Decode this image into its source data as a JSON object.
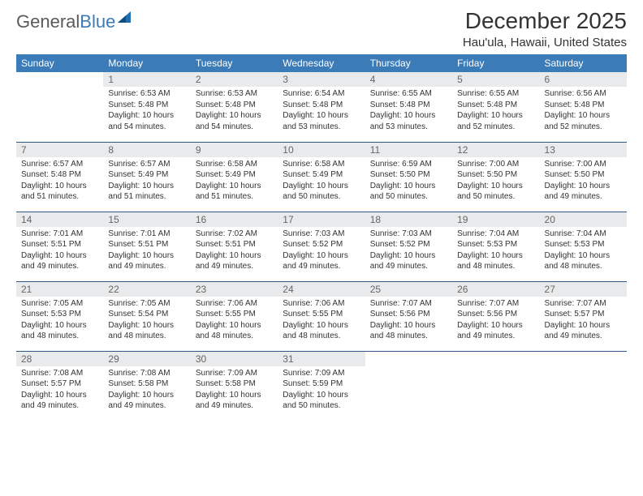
{
  "brand": {
    "name_part1": "General",
    "name_part2": "Blue"
  },
  "colors": {
    "header_bg": "#3b7bb8",
    "header_text": "#ffffff",
    "daynum_bg": "#e9eaeb",
    "daynum_text": "#666666",
    "rule": "#2e5a84",
    "logo_gray": "#5a5a5a",
    "logo_blue": "#3b7bb8"
  },
  "title": "December 2025",
  "location": "Hau'ula, Hawaii, United States",
  "day_headers": [
    "Sunday",
    "Monday",
    "Tuesday",
    "Wednesday",
    "Thursday",
    "Friday",
    "Saturday"
  ],
  "start_offset": 1,
  "days": [
    {
      "n": 1,
      "sr": "6:53 AM",
      "ss": "5:48 PM",
      "dl": "10 hours and 54 minutes."
    },
    {
      "n": 2,
      "sr": "6:53 AM",
      "ss": "5:48 PM",
      "dl": "10 hours and 54 minutes."
    },
    {
      "n": 3,
      "sr": "6:54 AM",
      "ss": "5:48 PM",
      "dl": "10 hours and 53 minutes."
    },
    {
      "n": 4,
      "sr": "6:55 AM",
      "ss": "5:48 PM",
      "dl": "10 hours and 53 minutes."
    },
    {
      "n": 5,
      "sr": "6:55 AM",
      "ss": "5:48 PM",
      "dl": "10 hours and 52 minutes."
    },
    {
      "n": 6,
      "sr": "6:56 AM",
      "ss": "5:48 PM",
      "dl": "10 hours and 52 minutes."
    },
    {
      "n": 7,
      "sr": "6:57 AM",
      "ss": "5:48 PM",
      "dl": "10 hours and 51 minutes."
    },
    {
      "n": 8,
      "sr": "6:57 AM",
      "ss": "5:49 PM",
      "dl": "10 hours and 51 minutes."
    },
    {
      "n": 9,
      "sr": "6:58 AM",
      "ss": "5:49 PM",
      "dl": "10 hours and 51 minutes."
    },
    {
      "n": 10,
      "sr": "6:58 AM",
      "ss": "5:49 PM",
      "dl": "10 hours and 50 minutes."
    },
    {
      "n": 11,
      "sr": "6:59 AM",
      "ss": "5:50 PM",
      "dl": "10 hours and 50 minutes."
    },
    {
      "n": 12,
      "sr": "7:00 AM",
      "ss": "5:50 PM",
      "dl": "10 hours and 50 minutes."
    },
    {
      "n": 13,
      "sr": "7:00 AM",
      "ss": "5:50 PM",
      "dl": "10 hours and 49 minutes."
    },
    {
      "n": 14,
      "sr": "7:01 AM",
      "ss": "5:51 PM",
      "dl": "10 hours and 49 minutes."
    },
    {
      "n": 15,
      "sr": "7:01 AM",
      "ss": "5:51 PM",
      "dl": "10 hours and 49 minutes."
    },
    {
      "n": 16,
      "sr": "7:02 AM",
      "ss": "5:51 PM",
      "dl": "10 hours and 49 minutes."
    },
    {
      "n": 17,
      "sr": "7:03 AM",
      "ss": "5:52 PM",
      "dl": "10 hours and 49 minutes."
    },
    {
      "n": 18,
      "sr": "7:03 AM",
      "ss": "5:52 PM",
      "dl": "10 hours and 49 minutes."
    },
    {
      "n": 19,
      "sr": "7:04 AM",
      "ss": "5:53 PM",
      "dl": "10 hours and 48 minutes."
    },
    {
      "n": 20,
      "sr": "7:04 AM",
      "ss": "5:53 PM",
      "dl": "10 hours and 48 minutes."
    },
    {
      "n": 21,
      "sr": "7:05 AM",
      "ss": "5:53 PM",
      "dl": "10 hours and 48 minutes."
    },
    {
      "n": 22,
      "sr": "7:05 AM",
      "ss": "5:54 PM",
      "dl": "10 hours and 48 minutes."
    },
    {
      "n": 23,
      "sr": "7:06 AM",
      "ss": "5:55 PM",
      "dl": "10 hours and 48 minutes."
    },
    {
      "n": 24,
      "sr": "7:06 AM",
      "ss": "5:55 PM",
      "dl": "10 hours and 48 minutes."
    },
    {
      "n": 25,
      "sr": "7:07 AM",
      "ss": "5:56 PM",
      "dl": "10 hours and 48 minutes."
    },
    {
      "n": 26,
      "sr": "7:07 AM",
      "ss": "5:56 PM",
      "dl": "10 hours and 49 minutes."
    },
    {
      "n": 27,
      "sr": "7:07 AM",
      "ss": "5:57 PM",
      "dl": "10 hours and 49 minutes."
    },
    {
      "n": 28,
      "sr": "7:08 AM",
      "ss": "5:57 PM",
      "dl": "10 hours and 49 minutes."
    },
    {
      "n": 29,
      "sr": "7:08 AM",
      "ss": "5:58 PM",
      "dl": "10 hours and 49 minutes."
    },
    {
      "n": 30,
      "sr": "7:09 AM",
      "ss": "5:58 PM",
      "dl": "10 hours and 49 minutes."
    },
    {
      "n": 31,
      "sr": "7:09 AM",
      "ss": "5:59 PM",
      "dl": "10 hours and 50 minutes."
    }
  ],
  "labels": {
    "sunrise": "Sunrise:",
    "sunset": "Sunset:",
    "daylight": "Daylight:"
  }
}
